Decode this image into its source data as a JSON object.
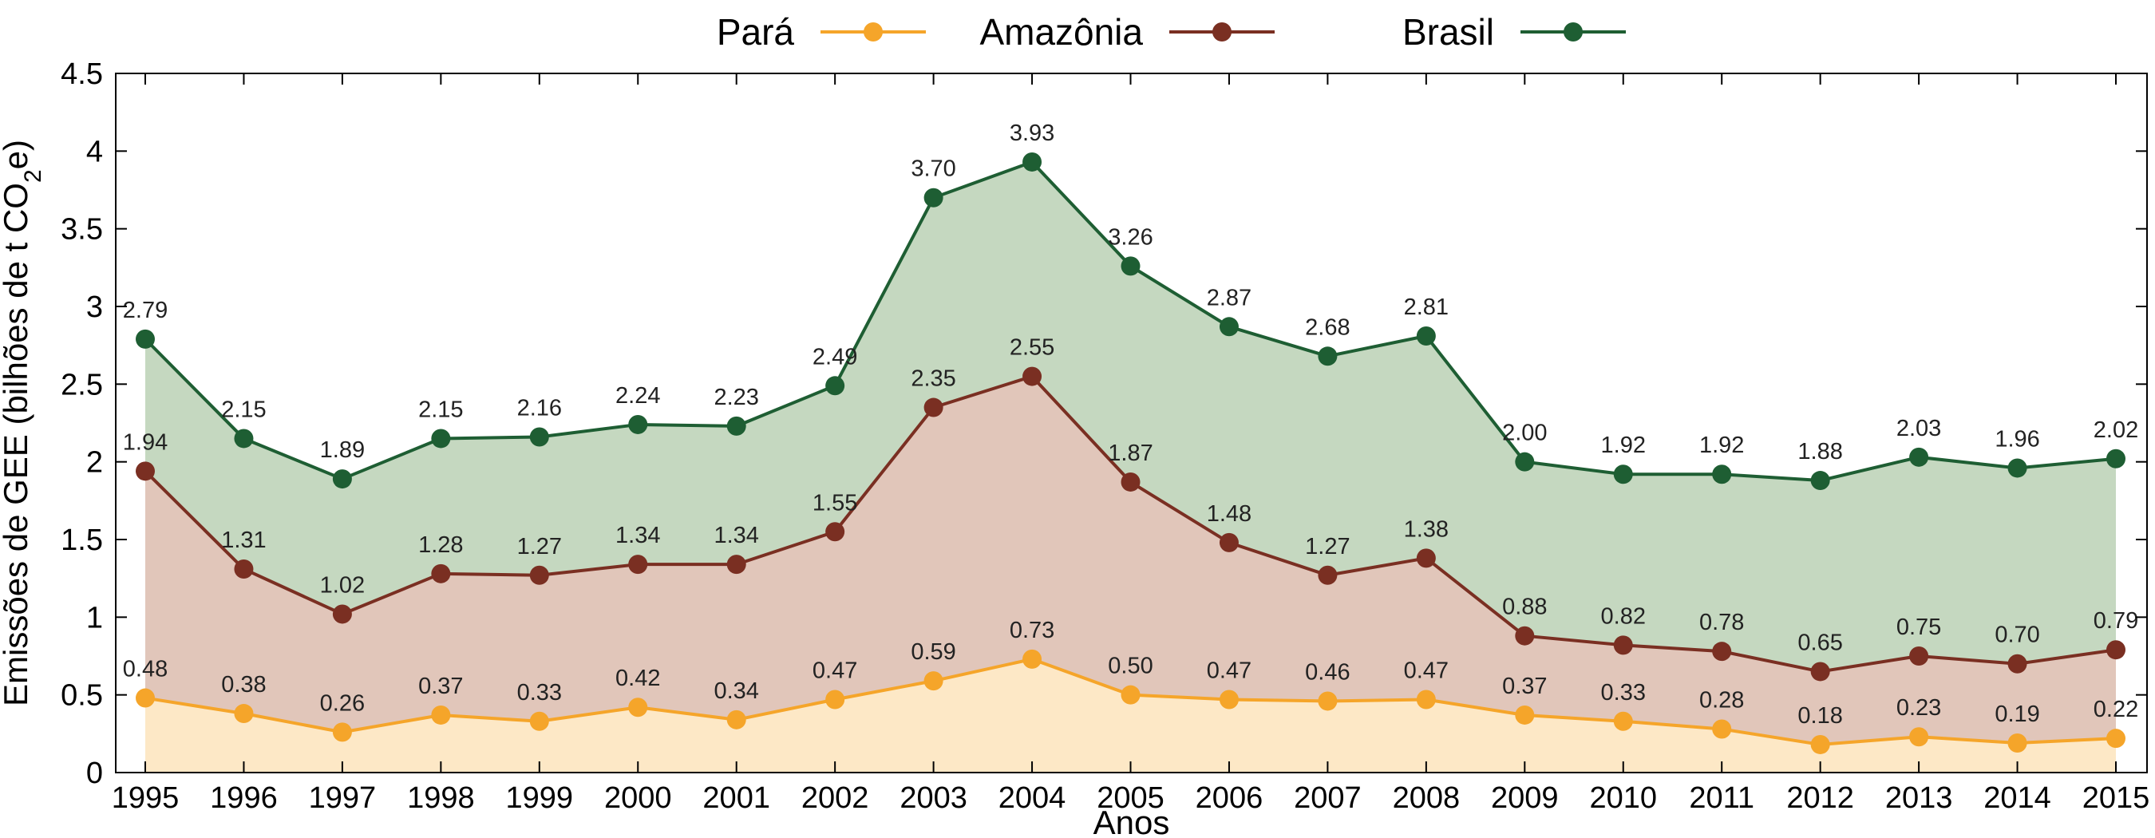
{
  "chart_data": {
    "type": "area",
    "x": [
      "1995",
      "1996",
      "1997",
      "1998",
      "1999",
      "2000",
      "2001",
      "2002",
      "2003",
      "2004",
      "2005",
      "2006",
      "2007",
      "2008",
      "2009",
      "2010",
      "2011",
      "2012",
      "2013",
      "2014",
      "2015"
    ],
    "series": [
      {
        "name": "Pará",
        "values": [
          0.48,
          0.38,
          0.26,
          0.37,
          0.33,
          0.42,
          0.34,
          0.47,
          0.59,
          0.73,
          0.5,
          0.47,
          0.46,
          0.47,
          0.37,
          0.33,
          0.28,
          0.18,
          0.23,
          0.19,
          0.22
        ],
        "labels": [
          "0.48",
          "0.38",
          "0.26",
          "0.37",
          "0.33",
          "0.42",
          "0.34",
          "0.47",
          "0.59",
          "0.73",
          "0.50",
          "0.47",
          "0.46",
          "0.47",
          "0.37",
          "0.33",
          "0.28",
          "0.18",
          "0.23",
          "0.19",
          "0.22"
        ],
        "line_color": "#f5a52a",
        "fill_color": "#fde8c6"
      },
      {
        "name": "Amazônia",
        "values": [
          1.94,
          1.31,
          1.02,
          1.28,
          1.27,
          1.34,
          1.34,
          1.55,
          2.35,
          2.55,
          1.87,
          1.48,
          1.27,
          1.38,
          0.88,
          0.82,
          0.78,
          0.65,
          0.75,
          0.7,
          0.79
        ],
        "labels": [
          "1.94",
          "1.31",
          "1.02",
          "1.28",
          "1.27",
          "1.34",
          "1.34",
          "1.55",
          "2.35",
          "2.55",
          "1.87",
          "1.48",
          "1.27",
          "1.38",
          "0.88",
          "0.82",
          "0.78",
          "0.65",
          "0.75",
          "0.70",
          "0.79"
        ],
        "line_color": "#7a2f22",
        "fill_color": "#e1c6ba"
      },
      {
        "name": "Brasil",
        "values": [
          2.79,
          2.15,
          1.89,
          2.15,
          2.16,
          2.24,
          2.23,
          2.49,
          3.7,
          3.93,
          3.26,
          2.87,
          2.68,
          2.81,
          2.0,
          1.92,
          1.92,
          1.88,
          2.03,
          1.96,
          2.02
        ],
        "labels": [
          "2.79",
          "2.15",
          "1.89",
          "2.15",
          "2.16",
          "2.24",
          "2.23",
          "2.49",
          "3.70",
          "3.93",
          "3.26",
          "2.87",
          "2.68",
          "2.81",
          "2.00",
          "1.92",
          "1.92",
          "1.88",
          "2.03",
          "1.96",
          "2.02"
        ],
        "line_color": "#1e5e33",
        "fill_color": "#c5d8c0"
      }
    ],
    "title": "",
    "xlabel": "Anos",
    "ylabel_prefix": "Emissões de GEE (bilhões de t CO",
    "ylabel_subscript": "2",
    "ylabel_suffix": "e)",
    "ylim": [
      0,
      4.5
    ],
    "yticks": [
      "0",
      "0.5",
      "1",
      "1.5",
      "2",
      "2.5",
      "3",
      "3.5",
      "4",
      "4.5"
    ],
    "ytick_values": [
      0,
      0.5,
      1,
      1.5,
      2,
      2.5,
      3,
      3.5,
      4,
      4.5
    ],
    "grid": false,
    "legend_position": "top-center"
  }
}
